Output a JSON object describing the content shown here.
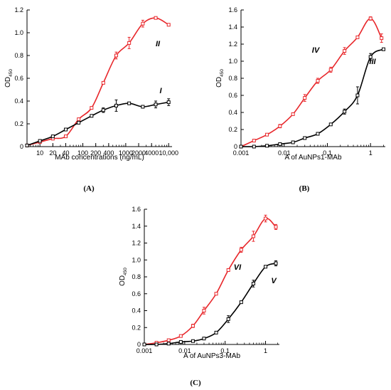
{
  "chart_data": [
    {
      "panel_label": "(A)",
      "type": "line",
      "xscale": "log",
      "xlim": [
        5,
        12000
      ],
      "ylim": [
        0,
        1.2
      ],
      "xticks": [
        10,
        20,
        40,
        100,
        200,
        400,
        1000,
        2000,
        4000,
        10000
      ],
      "xtick_labels": [
        "10",
        "20",
        "40",
        "100",
        "200",
        "400",
        "1000",
        "2000",
        "4000",
        "10,000"
      ],
      "yticks": [
        0,
        0.2,
        0.4,
        0.6,
        0.8,
        1.0,
        1.2
      ],
      "ytick_labels": [
        "0",
        "0.2",
        "0.4",
        "0.6",
        "0.8",
        "1.0",
        "1.2"
      ],
      "xlabel": "MAb concentrations (ng/mL)",
      "ylabel": "OD",
      "ylabel_sub": "450",
      "series": [
        {
          "name": "II",
          "color": "#e8262a",
          "points": [
            {
              "x": 5,
              "y": 0.01
            },
            {
              "x": 10,
              "y": 0.04
            },
            {
              "x": 20,
              "y": 0.07
            },
            {
              "x": 40,
              "y": 0.09
            },
            {
              "x": 80,
              "y": 0.24
            },
            {
              "x": 160,
              "y": 0.34
            },
            {
              "x": 300,
              "y": 0.56
            },
            {
              "x": 600,
              "y": 0.8
            },
            {
              "x": 1200,
              "y": 0.91
            },
            {
              "x": 2500,
              "y": 1.08
            },
            {
              "x": 5000,
              "y": 1.13
            },
            {
              "x": 10000,
              "y": 1.07
            }
          ],
          "error": [
            0,
            0,
            0,
            0,
            0,
            0,
            0,
            0.03,
            0.05,
            0.03,
            0,
            0
          ]
        },
        {
          "name": "I",
          "color": "#000000",
          "points": [
            {
              "x": 5,
              "y": 0.01
            },
            {
              "x": 10,
              "y": 0.05
            },
            {
              "x": 20,
              "y": 0.09
            },
            {
              "x": 40,
              "y": 0.15
            },
            {
              "x": 80,
              "y": 0.21
            },
            {
              "x": 160,
              "y": 0.27
            },
            {
              "x": 300,
              "y": 0.32
            },
            {
              "x": 600,
              "y": 0.36
            },
            {
              "x": 1200,
              "y": 0.38
            },
            {
              "x": 2500,
              "y": 0.35
            },
            {
              "x": 5000,
              "y": 0.37
            },
            {
              "x": 10000,
              "y": 0.39
            }
          ],
          "error": [
            0,
            0,
            0,
            0,
            0,
            0,
            0.02,
            0.05,
            0,
            0,
            0.03,
            0.03
          ]
        }
      ]
    },
    {
      "panel_label": "(B)",
      "type": "line",
      "xscale": "log",
      "xlim": [
        0.001,
        2.2
      ],
      "ylim": [
        0,
        1.6
      ],
      "xticks": [
        0.001,
        0.01,
        0.1,
        1
      ],
      "xtick_labels": [
        "0.001",
        "0.01",
        "0.1",
        "1"
      ],
      "yticks": [
        0,
        0.2,
        0.4,
        0.6,
        0.8,
        1.0,
        1.2,
        1.4,
        1.6
      ],
      "ytick_labels": [
        "0",
        "0.2",
        "0.4",
        "0.6",
        "0.8",
        "1.0",
        "1.2",
        "1.4",
        "1.6"
      ],
      "xlabel": "A of AuNPs1-MAb",
      "ylabel": "OD",
      "ylabel_sub": "450",
      "series": [
        {
          "name": "IV",
          "color": "#e8262a",
          "points": [
            {
              "x": 0.001,
              "y": 0.0
            },
            {
              "x": 0.002,
              "y": 0.07
            },
            {
              "x": 0.004,
              "y": 0.14
            },
            {
              "x": 0.008,
              "y": 0.24
            },
            {
              "x": 0.016,
              "y": 0.38
            },
            {
              "x": 0.03,
              "y": 0.57
            },
            {
              "x": 0.06,
              "y": 0.77
            },
            {
              "x": 0.12,
              "y": 0.9
            },
            {
              "x": 0.25,
              "y": 1.12
            },
            {
              "x": 0.5,
              "y": 1.28
            },
            {
              "x": 1.0,
              "y": 1.5
            },
            {
              "x": 1.8,
              "y": 1.27
            }
          ],
          "error": [
            0,
            0,
            0,
            0.02,
            0,
            0.04,
            0.03,
            0.03,
            0.04,
            0,
            0.02,
            0.05
          ]
        },
        {
          "name": "III",
          "color": "#000000",
          "points": [
            {
              "x": 0.001,
              "y": 0.0
            },
            {
              "x": 0.002,
              "y": 0.0
            },
            {
              "x": 0.004,
              "y": 0.01
            },
            {
              "x": 0.008,
              "y": 0.03
            },
            {
              "x": 0.016,
              "y": 0.05
            },
            {
              "x": 0.03,
              "y": 0.1
            },
            {
              "x": 0.06,
              "y": 0.15
            },
            {
              "x": 0.12,
              "y": 0.26
            },
            {
              "x": 0.25,
              "y": 0.41
            },
            {
              "x": 0.5,
              "y": 0.6
            },
            {
              "x": 1.0,
              "y": 1.05
            },
            {
              "x": 2.0,
              "y": 1.14
            }
          ],
          "error": [
            0,
            0,
            0,
            0,
            0,
            0,
            0,
            0,
            0.03,
            0.1,
            0.04,
            0
          ]
        }
      ]
    },
    {
      "panel_label": "(C)",
      "type": "line",
      "xscale": "log",
      "xlim": [
        0.001,
        2.2
      ],
      "ylim": [
        0,
        1.6
      ],
      "xticks": [
        0.001,
        0.01,
        0.1,
        1
      ],
      "xtick_labels": [
        "0.001",
        "0.01",
        "0.1",
        "1"
      ],
      "yticks": [
        0,
        0.2,
        0.4,
        0.6,
        0.8,
        1.0,
        1.2,
        1.4,
        1.6
      ],
      "ytick_labels": [
        "0",
        "0.2",
        "0.4",
        "0.6",
        "0.8",
        "1.0",
        "1.2",
        "1.4",
        "1.6"
      ],
      "xlabel": "A of AuNPs3-MAb",
      "ylabel": "OD",
      "ylabel_sub": "450",
      "series": [
        {
          "name": "VI",
          "color": "#e8262a",
          "points": [
            {
              "x": 0.001,
              "y": 0.0
            },
            {
              "x": 0.002,
              "y": 0.02
            },
            {
              "x": 0.004,
              "y": 0.05
            },
            {
              "x": 0.008,
              "y": 0.1
            },
            {
              "x": 0.016,
              "y": 0.22
            },
            {
              "x": 0.03,
              "y": 0.4
            },
            {
              "x": 0.06,
              "y": 0.6
            },
            {
              "x": 0.12,
              "y": 0.88
            },
            {
              "x": 0.25,
              "y": 1.12
            },
            {
              "x": 0.5,
              "y": 1.28
            },
            {
              "x": 1.0,
              "y": 1.49
            },
            {
              "x": 1.8,
              "y": 1.39
            }
          ],
          "error": [
            0,
            0,
            0,
            0,
            0.02,
            0.04,
            0,
            0,
            0.03,
            0.06,
            0.04,
            0.03
          ]
        },
        {
          "name": "V",
          "color": "#000000",
          "points": [
            {
              "x": 0.001,
              "y": 0.0
            },
            {
              "x": 0.002,
              "y": 0.0
            },
            {
              "x": 0.004,
              "y": 0.01
            },
            {
              "x": 0.008,
              "y": 0.03
            },
            {
              "x": 0.016,
              "y": 0.04
            },
            {
              "x": 0.03,
              "y": 0.07
            },
            {
              "x": 0.06,
              "y": 0.14
            },
            {
              "x": 0.12,
              "y": 0.3
            },
            {
              "x": 0.25,
              "y": 0.5
            },
            {
              "x": 0.5,
              "y": 0.72
            },
            {
              "x": 1.0,
              "y": 0.92
            },
            {
              "x": 1.8,
              "y": 0.96
            }
          ],
          "error": [
            0,
            0,
            0,
            0,
            0,
            0,
            0,
            0.04,
            0,
            0.04,
            0,
            0.03
          ]
        }
      ]
    }
  ]
}
